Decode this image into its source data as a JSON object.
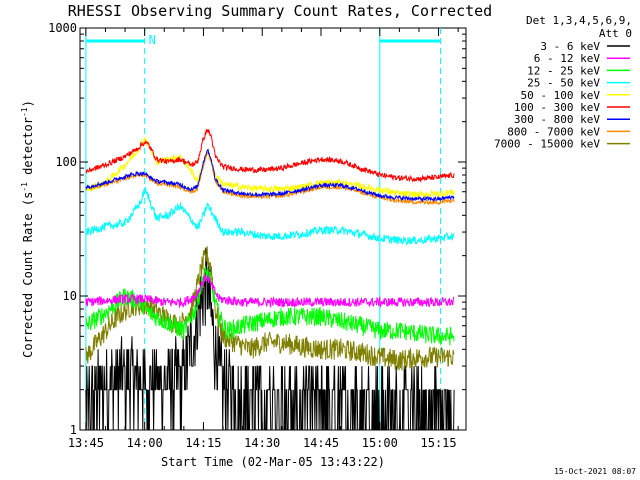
{
  "chart_data": {
    "type": "line",
    "title": "RHESSI Observing Summary Count Rates, Corrected",
    "xlabel": "Start Time (02-Mar-05 13:43:22)",
    "ylabel": "Corrected Count Rate (s⁻¹ detector⁻¹)",
    "ylabel_parts": {
      "main": "Corrected Count Rate (s",
      "sup1": "-1",
      "mid": " detector",
      "sup2": "-1",
      "end": ")"
    },
    "yscale": "log",
    "ylim": [
      1,
      1000
    ],
    "xlim_minutes": [
      -1.5,
      97
    ],
    "y_ticks": [
      {
        "value": 1,
        "label": "1"
      },
      {
        "value": 10,
        "label": "10"
      },
      {
        "value": 100,
        "label": "100"
      },
      {
        "value": 1000,
        "label": "1000"
      }
    ],
    "x_ticks": [
      {
        "minute": 0,
        "label": "13:45"
      },
      {
        "minute": 15,
        "label": "14:00"
      },
      {
        "minute": 30,
        "label": "14:15"
      },
      {
        "minute": 45,
        "label": "14:30"
      },
      {
        "minute": 60,
        "label": "14:45"
      },
      {
        "minute": 75,
        "label": "15:00"
      },
      {
        "minute": 90,
        "label": "15:15"
      }
    ],
    "legend_position": "outside-right",
    "legend_header": [
      "Det 1,3,4,5,6,9,",
      "Att 0"
    ],
    "timestamp": "15-Oct-2021 08:07",
    "night_markers_minutes": [
      0,
      15,
      75,
      90.5
    ],
    "night_bar_label": "N",
    "series": [
      {
        "name": "3 - 6 keV",
        "color": "#000000",
        "x": [
          0,
          5,
          10,
          15,
          20,
          25,
          28,
          30,
          31,
          32,
          34,
          40,
          50,
          60,
          70,
          80,
          90,
          94
        ],
        "y": [
          1.5,
          2.2,
          2.5,
          2.3,
          2.2,
          2.5,
          6,
          11,
          12,
          7,
          2.5,
          1.8,
          1.6,
          1.6,
          1.5,
          1.4,
          1.4,
          1.4
        ]
      },
      {
        "name": "6 - 12 keV",
        "color": "#ff00ff",
        "x": [
          0,
          10,
          15,
          20,
          25,
          28,
          30,
          31,
          32,
          34,
          40,
          50,
          60,
          70,
          80,
          90,
          94
        ],
        "y": [
          9,
          9.5,
          9.5,
          9,
          9,
          10,
          13,
          14,
          12,
          9.5,
          9,
          9,
          9,
          9,
          9,
          9,
          9
        ]
      },
      {
        "name": "12 - 25 keV",
        "color": "#00ff00",
        "x": [
          0,
          5,
          10,
          14,
          16,
          20,
          25,
          28,
          30,
          31,
          32,
          34,
          36,
          40,
          45,
          50,
          55,
          60,
          70,
          75,
          80,
          90,
          94
        ],
        "y": [
          6,
          7.5,
          10,
          9,
          7.5,
          6.5,
          5.5,
          8,
          14,
          15,
          12,
          7,
          5.5,
          6,
          6.5,
          7,
          7,
          7,
          6,
          5.5,
          5.5,
          5,
          5
        ]
      },
      {
        "name": "25 - 50 keV",
        "color": "#00ffff",
        "x": [
          0,
          5,
          10,
          14,
          15,
          16,
          18,
          21,
          24,
          27,
          28.5,
          30,
          31,
          33,
          35,
          40,
          45,
          50,
          55,
          60,
          65,
          70,
          75,
          80,
          85,
          90,
          94
        ],
        "y": [
          30,
          33,
          35,
          50,
          62,
          55,
          38,
          40,
          47,
          37,
          32,
          40,
          48,
          38,
          30,
          30,
          28,
          28,
          29,
          31,
          31,
          29,
          27,
          26,
          26,
          27,
          28
        ]
      },
      {
        "name": "50 - 100 keV",
        "color": "#ffff00",
        "x": [
          0,
          5,
          10,
          13,
          15,
          16,
          18,
          21,
          24,
          27,
          28.5,
          30,
          31,
          33,
          35,
          40,
          45,
          50,
          55,
          60,
          65,
          70,
          75,
          80,
          85,
          90,
          94
        ],
        "y": [
          62,
          70,
          95,
          120,
          150,
          135,
          100,
          105,
          110,
          85,
          72,
          95,
          120,
          80,
          68,
          65,
          63,
          63,
          65,
          70,
          70,
          66,
          62,
          58,
          57,
          58,
          60
        ]
      },
      {
        "name": "100 - 300 keV",
        "color": "#ff0000",
        "x": [
          0,
          5,
          10,
          13,
          15,
          16,
          18,
          21,
          24,
          27,
          28.5,
          30,
          31,
          32,
          33,
          35,
          40,
          45,
          50,
          55,
          60,
          65,
          70,
          75,
          80,
          85,
          90,
          94
        ],
        "y": [
          85,
          95,
          110,
          125,
          140,
          135,
          105,
          100,
          105,
          95,
          100,
          150,
          175,
          155,
          110,
          92,
          88,
          87,
          90,
          98,
          105,
          102,
          90,
          80,
          76,
          75,
          77,
          80
        ]
      },
      {
        "name": "300 - 800 keV",
        "color": "#0000ff",
        "x": [
          0,
          5,
          10,
          13,
          15,
          16,
          18,
          21,
          24,
          27,
          28.5,
          30,
          31,
          32,
          33,
          35,
          40,
          45,
          50,
          55,
          60,
          65,
          70,
          75,
          80,
          85,
          90,
          94
        ],
        "y": [
          65,
          70,
          78,
          82,
          82,
          78,
          72,
          70,
          68,
          62,
          66,
          100,
          125,
          105,
          75,
          62,
          58,
          57,
          58,
          62,
          67,
          67,
          62,
          56,
          54,
          53,
          53,
          55
        ]
      },
      {
        "name": "800 - 7000 keV",
        "color": "#ff8c00",
        "x": [
          0,
          5,
          10,
          13,
          15,
          16,
          18,
          21,
          24,
          27,
          28.5,
          30,
          31,
          32,
          33,
          35,
          40,
          45,
          50,
          55,
          60,
          65,
          70,
          75,
          80,
          85,
          90,
          94
        ],
        "y": [
          63,
          68,
          75,
          80,
          80,
          76,
          70,
          68,
          65,
          60,
          63,
          95,
          118,
          100,
          72,
          60,
          56,
          55,
          56,
          60,
          65,
          65,
          60,
          54,
          51,
          50,
          50,
          52
        ]
      },
      {
        "name": "7000 - 15000 keV",
        "color": "#808000",
        "x": [
          0,
          4,
          8,
          12,
          16,
          20,
          24,
          27,
          29,
          30,
          31,
          32,
          33,
          35,
          38,
          42,
          46,
          50,
          55,
          60,
          65,
          70,
          75,
          80,
          85,
          90,
          94
        ],
        "y": [
          3.5,
          5,
          7,
          8.5,
          8.5,
          7,
          6,
          8,
          14,
          18,
          20,
          16,
          8,
          5,
          4.5,
          4,
          4.5,
          4.5,
          4.2,
          4,
          4,
          3.8,
          3.5,
          3.3,
          3.5,
          3.5,
          3.5
        ]
      }
    ]
  }
}
